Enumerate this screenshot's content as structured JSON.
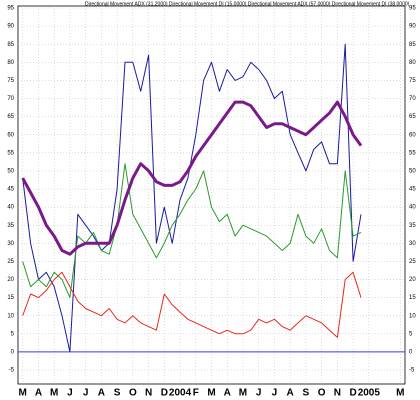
{
  "chart_data": {
    "type": "line",
    "title": "Directional Movement ADX (31.2000) Directional Movement DI (15.0000) Directional Movement ADX (57.0000) Directional Movement DI (38.0000)",
    "x": [
      0,
      0.5,
      1,
      1.5,
      2,
      2.5,
      3,
      3.5,
      4,
      4.5,
      5,
      5.5,
      6,
      6.5,
      7,
      7.5,
      8,
      8.5,
      9,
      9.5,
      10,
      10.5,
      11,
      11.5,
      12,
      12.5,
      13,
      13.5,
      14,
      14.5,
      15,
      15.5,
      16,
      16.5,
      17,
      17.5,
      18,
      18.5,
      19,
      19.5,
      20,
      20.5,
      21,
      21.5
    ],
    "series": [
      {
        "color": "#1a1aa0",
        "values": [
          48,
          30,
          20,
          22,
          18,
          10,
          0,
          38,
          35,
          32,
          28,
          30,
          45,
          80,
          80,
          72,
          82,
          30,
          40,
          30,
          42,
          48,
          60,
          75,
          80,
          72,
          78,
          75,
          76,
          80,
          78,
          75,
          70,
          72,
          60,
          55,
          50,
          56,
          58,
          52,
          52,
          85,
          25,
          38
        ]
      },
      {
        "color": "#2a9a2a",
        "values": [
          25,
          18,
          20,
          18,
          22,
          20,
          15,
          32,
          30,
          33,
          28,
          27,
          35,
          52,
          38,
          34,
          30,
          26,
          30,
          35,
          38,
          42,
          45,
          50,
          40,
          36,
          38,
          32,
          35,
          34,
          33,
          32,
          30,
          28,
          30,
          38,
          32,
          30,
          34,
          28,
          26,
          50,
          32,
          33
        ]
      },
      {
        "color": "#e8281e",
        "values": [
          10,
          16,
          15,
          17,
          20,
          22,
          18,
          14,
          12,
          11,
          10,
          12,
          9,
          8,
          10,
          8,
          7,
          6,
          16,
          13,
          11,
          9,
          8,
          7,
          6,
          5,
          6,
          5,
          5,
          6,
          9,
          8,
          9,
          7,
          6,
          8,
          10,
          9,
          8,
          6,
          4,
          20,
          22,
          15
        ]
      },
      {
        "color": "#7a1a8a",
        "width": 3,
        "values": [
          48,
          44,
          40,
          35,
          32,
          28,
          27,
          29,
          30,
          30,
          30,
          30,
          35,
          42,
          48,
          52,
          50,
          47,
          46,
          46,
          47,
          50,
          54,
          57,
          60,
          63,
          66,
          69,
          69,
          68,
          65,
          62,
          63,
          63,
          62,
          61,
          60,
          62,
          64,
          66,
          69,
          65,
          60,
          57
        ]
      }
    ],
    "xlim": [
      -0.3,
      24.3
    ],
    "xticks": [
      {
        "value": 0,
        "label": "M"
      },
      {
        "value": 1,
        "label": "A"
      },
      {
        "value": 2,
        "label": "M"
      },
      {
        "value": 3,
        "label": "J"
      },
      {
        "value": 4,
        "label": "J"
      },
      {
        "value": 5,
        "label": "A"
      },
      {
        "value": 6,
        "label": "S"
      },
      {
        "value": 7,
        "label": "O"
      },
      {
        "value": 8,
        "label": "N"
      },
      {
        "value": 9,
        "label": "D"
      },
      {
        "value": 10,
        "label": "2004"
      },
      {
        "value": 11,
        "label": "F"
      },
      {
        "value": 12,
        "label": "M"
      },
      {
        "value": 13,
        "label": "A"
      },
      {
        "value": 14,
        "label": "M"
      },
      {
        "value": 15,
        "label": "J"
      },
      {
        "value": 16,
        "label": "J"
      },
      {
        "value": 17,
        "label": "A"
      },
      {
        "value": 18,
        "label": "S"
      },
      {
        "value": 19,
        "label": "O"
      },
      {
        "value": 20,
        "label": "N"
      },
      {
        "value": 21,
        "label": "D"
      },
      {
        "value": 22,
        "label": "2005"
      },
      {
        "value": 24,
        "label": "M"
      }
    ],
    "ylim": [
      -5,
      95
    ],
    "yticks": [
      -5,
      0,
      5,
      10,
      15,
      20,
      25,
      30,
      35,
      40,
      45,
      50,
      55,
      60,
      65,
      70,
      75,
      80,
      85,
      90,
      95
    ],
    "hline": 0,
    "hline_color": "#3a3aff",
    "grid": true
  }
}
